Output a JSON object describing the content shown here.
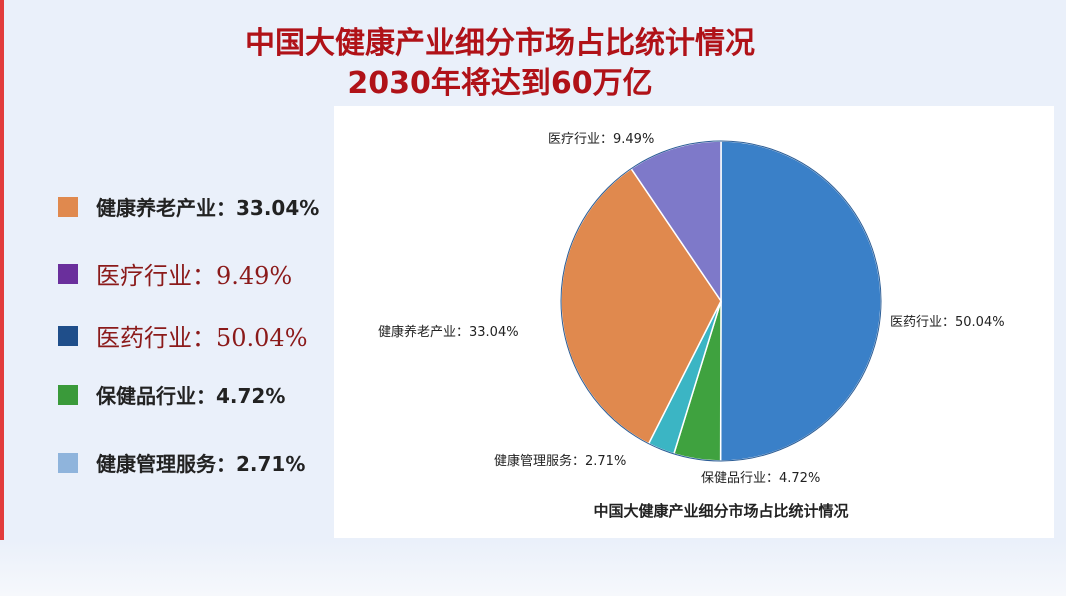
{
  "header": {
    "title_line1": "中国大健康产业细分市场占比统计情况",
    "title_line2": "2030年将达到60万亿"
  },
  "legend": {
    "items": [
      {
        "label": "健康养老产业：33.04%",
        "color": "#e0894e",
        "style": "bold"
      },
      {
        "label": "医疗行业：9.49%",
        "color": "#6a2f9c",
        "style": "serif"
      },
      {
        "label": "医药行业：50.04%",
        "color": "#1f4e8a",
        "style": "serif"
      },
      {
        "label": "保健品行业：4.72%",
        "color": "#3a9a3a",
        "style": "bold"
      },
      {
        "label": "健康管理服务：2.71%",
        "color": "#8fb4dc",
        "style": "bold"
      }
    ]
  },
  "chart_data": {
    "type": "pie",
    "title": "中国大健康产业细分市场占比统计情况",
    "start_angle_deg": 0,
    "direction": "clockwise",
    "slices": [
      {
        "name": "医药行业",
        "value": 50.04,
        "label": "医药行业：50.04%",
        "color": "#3a80c8"
      },
      {
        "name": "保健品行业",
        "value": 4.72,
        "label": "保健品行业：4.72%",
        "color": "#3fa23f"
      },
      {
        "name": "健康管理服务",
        "value": 2.71,
        "label": "健康管理服务：2.71%",
        "color": "#3bb5c4"
      },
      {
        "name": "健康养老产业",
        "value": 33.04,
        "label": "健康养老产业：33.04%",
        "color": "#e0894e"
      },
      {
        "name": "医疗行业",
        "value": 9.49,
        "label": "医疗行业：9.49%",
        "color": "#7e79c9"
      }
    ]
  }
}
